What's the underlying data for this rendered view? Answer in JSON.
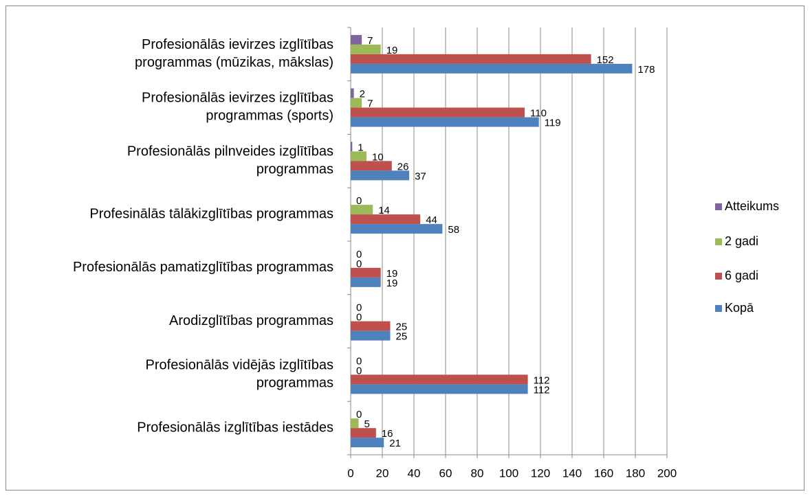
{
  "chart_data": {
    "type": "bar",
    "orientation": "horizontal",
    "categories": [
      "Profesionālās ievirzes izglītības\nprogrammas (mūzikas, mākslas)",
      "Profesionālās ievirzes izglītības\nprogrammas (sports)",
      "Profesionālās pilnveides izglītības\nprogrammas",
      "Profesinālās tālākizglītības programmas",
      "Profesionālās pamatizglītības programmas",
      "Arodizglītības programmas",
      "Profesionālās vidējās izglītības\nprogrammas",
      "Profesionālās izglītības iestādes"
    ],
    "series": [
      {
        "name": "Atteikums",
        "color": "#8064a2",
        "values": [
          7,
          2,
          1,
          0,
          0,
          0,
          0,
          0
        ]
      },
      {
        "name": "2 gadi",
        "color": "#9bbb59",
        "values": [
          19,
          7,
          10,
          14,
          0,
          0,
          0,
          5
        ]
      },
      {
        "name": "6 gadi",
        "color": "#c0504d",
        "values": [
          152,
          110,
          26,
          44,
          19,
          25,
          112,
          16
        ]
      },
      {
        "name": "Kopā",
        "color": "#4f81bd",
        "values": [
          178,
          119,
          37,
          58,
          19,
          25,
          112,
          21
        ]
      }
    ],
    "xlim": [
      0,
      200
    ],
    "xticks": [
      0,
      20,
      40,
      60,
      80,
      100,
      120,
      140,
      160,
      180,
      200
    ],
    "grid": true,
    "legend": "right"
  }
}
